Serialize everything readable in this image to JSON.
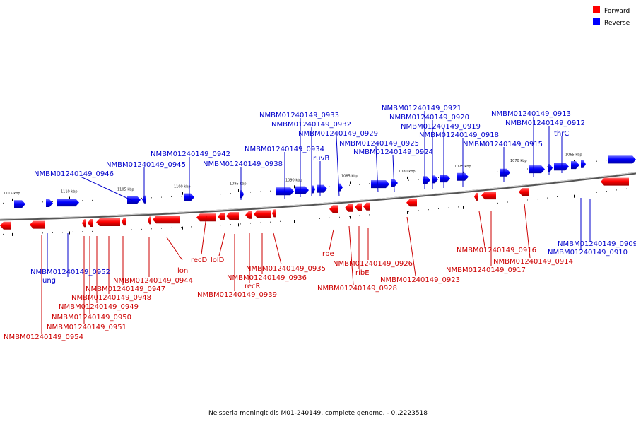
{
  "legend": [
    {
      "label": "Forward",
      "color": "#ff0000"
    },
    {
      "label": "Reverse",
      "color": "#0000ff"
    }
  ],
  "caption": "Neisseria meningitidis M01-240149, complete genome. - 0..2223518",
  "colors": {
    "forward": "#ff0000",
    "reverse": "#0000ff",
    "forward_dark": "#cc0000",
    "reverse_dark": "#0000cc"
  },
  "ticks": [
    "1115 kbp",
    "1110 kbp",
    "1105 kbp",
    "1100 kbp",
    "1095 kbp",
    "1090 kbp",
    "1085 kbp",
    "1080 kbp",
    "1075 kbp",
    "1070 kbp",
    "1065 kbp"
  ],
  "labels": [
    {
      "text": "NMBM01240149_0946",
      "strand": "reverse"
    },
    {
      "text": "NMBM01240149_0945",
      "strand": "reverse"
    },
    {
      "text": "NMBM01240149_0942",
      "strand": "reverse"
    },
    {
      "text": "NMBM01240149_0938",
      "strand": "reverse"
    },
    {
      "text": "NMBM01240149_0934",
      "strand": "reverse"
    },
    {
      "text": "NMBM01240149_0933",
      "strand": "reverse"
    },
    {
      "text": "NMBM01240149_0932",
      "strand": "reverse"
    },
    {
      "text": "NMBM01240149_0929",
      "strand": "reverse"
    },
    {
      "text": "ruvB",
      "strand": "reverse"
    },
    {
      "text": "NMBM01240149_0925",
      "strand": "reverse"
    },
    {
      "text": "NMBM01240149_0924",
      "strand": "reverse"
    },
    {
      "text": "NMBM01240149_0921",
      "strand": "reverse"
    },
    {
      "text": "NMBM01240149_0920",
      "strand": "reverse"
    },
    {
      "text": "NMBM01240149_0919",
      "strand": "reverse"
    },
    {
      "text": "NMBM01240149_0918",
      "strand": "reverse"
    },
    {
      "text": "NMBM01240149_0915",
      "strand": "reverse"
    },
    {
      "text": "NMBM01240149_0913",
      "strand": "reverse"
    },
    {
      "text": "NMBM01240149_0912",
      "strand": "reverse"
    },
    {
      "text": "thrC",
      "strand": "reverse"
    },
    {
      "text": "NMBM01240149_0909",
      "strand": "reverse"
    },
    {
      "text": "NMBM01240149_0910",
      "strand": "reverse"
    },
    {
      "text": "NMBM01240149_0952",
      "strand": "reverse"
    },
    {
      "text": "ung",
      "strand": "reverse"
    },
    {
      "text": "lon",
      "strand": "forward"
    },
    {
      "text": "recD",
      "strand": "forward"
    },
    {
      "text": "lolD",
      "strand": "forward"
    },
    {
      "text": "NMBM01240149_0944",
      "strand": "forward"
    },
    {
      "text": "NMBM01240149_0947",
      "strand": "forward"
    },
    {
      "text": "NMBM01240149_0948",
      "strand": "forward"
    },
    {
      "text": "NMBM01240149_0949",
      "strand": "forward"
    },
    {
      "text": "NMBM01240149_0950",
      "strand": "forward"
    },
    {
      "text": "NMBM01240149_0951",
      "strand": "forward"
    },
    {
      "text": "NMBM01240149_0954",
      "strand": "forward"
    },
    {
      "text": "NMBM01240149_0935",
      "strand": "forward"
    },
    {
      "text": "NMBM01240149_0936",
      "strand": "forward"
    },
    {
      "text": "recR",
      "strand": "forward"
    },
    {
      "text": "NMBM01240149_0939",
      "strand": "forward"
    },
    {
      "text": "rpe",
      "strand": "forward"
    },
    {
      "text": "NMBM01240149_0926",
      "strand": "forward"
    },
    {
      "text": "ribE",
      "strand": "forward"
    },
    {
      "text": "NMBM01240149_0928",
      "strand": "forward"
    },
    {
      "text": "NMBM01240149_0923",
      "strand": "forward"
    },
    {
      "text": "NMBM01240149_0916",
      "strand": "forward"
    },
    {
      "text": "NMBM01240149_0917",
      "strand": "forward"
    },
    {
      "text": "NMBM01240149_0914",
      "strand": "forward"
    }
  ]
}
